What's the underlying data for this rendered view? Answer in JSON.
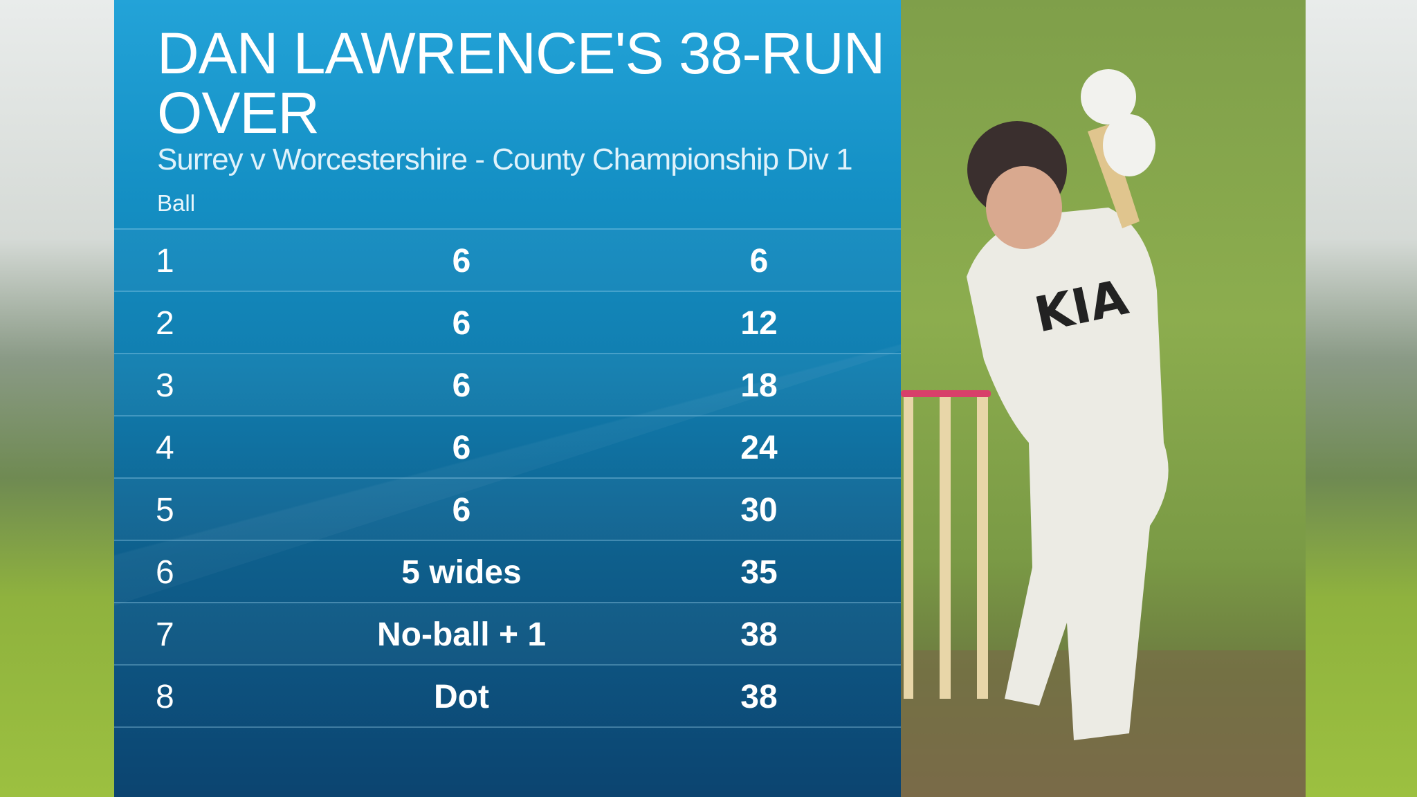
{
  "title": "DAN LAWRENCE'S 38-RUN OVER",
  "subtitle": "Surrey v Worcestershire - County Championship Div 1",
  "column_header": "Ball",
  "rows": [
    {
      "ball": "1",
      "result": "6",
      "total": "6"
    },
    {
      "ball": "2",
      "result": "6",
      "total": "12"
    },
    {
      "ball": "3",
      "result": "6",
      "total": "18"
    },
    {
      "ball": "4",
      "result": "6",
      "total": "24"
    },
    {
      "ball": "5",
      "result": "6",
      "total": "30"
    },
    {
      "ball": "6",
      "result": "5 wides",
      "total": "35"
    },
    {
      "ball": "7",
      "result": "No-ball + 1",
      "total": "38"
    },
    {
      "ball": "8",
      "result": "Dot",
      "total": "38"
    }
  ],
  "colors": {
    "panel_top": "#23a3d8",
    "panel_bottom": "#0c4470",
    "text": "#ffffff"
  }
}
